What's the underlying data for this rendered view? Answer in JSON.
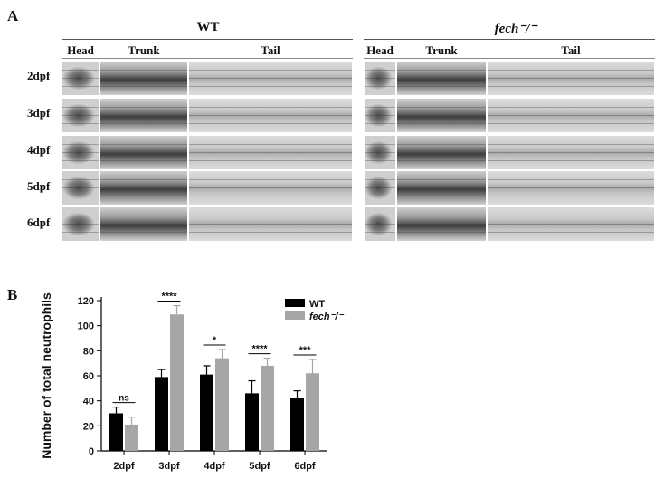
{
  "panel_a": {
    "letter": "A",
    "groups": [
      {
        "title": "WT",
        "italic": false
      },
      {
        "title": "fech⁻/⁻",
        "italic": true
      }
    ],
    "columns": [
      "Head",
      "Trunk",
      "Tail"
    ],
    "rows": [
      "2dpf",
      "3dpf",
      "4dpf",
      "5dpf",
      "6dpf"
    ]
  },
  "panel_b": {
    "letter": "B"
  },
  "chart_data": {
    "type": "bar",
    "categories": [
      "2dpf",
      "3dpf",
      "4dpf",
      "5dpf",
      "6dpf"
    ],
    "series": [
      {
        "name": "WT",
        "color": "#000000",
        "values": [
          30,
          59,
          61,
          46,
          42
        ],
        "errors": [
          5,
          6,
          7,
          10,
          6
        ]
      },
      {
        "name": "fech⁻/⁻",
        "color": "#a6a6a6",
        "values": [
          21,
          109,
          74,
          68,
          62
        ],
        "errors": [
          6,
          7,
          7,
          6,
          11
        ]
      }
    ],
    "ylabel": "Number of total neutrophils",
    "xlabel": "",
    "ylim": [
      0,
      120
    ],
    "yticks": [
      0,
      20,
      40,
      60,
      80,
      100,
      120
    ],
    "significance": [
      "ns",
      "****",
      "*",
      "****",
      "***"
    ],
    "legend_position": "top-right"
  }
}
